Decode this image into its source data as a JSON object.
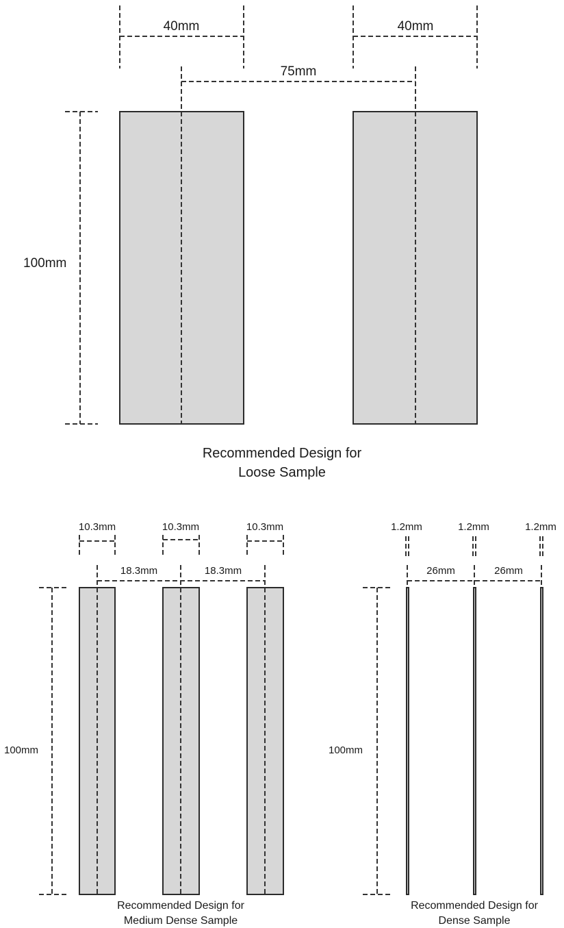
{
  "loose": {
    "width_left": "40mm",
    "width_right": "40mm",
    "spacing": "75mm",
    "height": "100mm",
    "caption_line1": "Recommended Design for",
    "caption_line2": "Loose Sample"
  },
  "medium": {
    "width_1": "10.3mm",
    "width_2": "10.3mm",
    "width_3": "10.3mm",
    "spacing_1": "18.3mm",
    "spacing_2": "18.3mm",
    "height": "100mm",
    "caption_line1": "Recommended Design for",
    "caption_line2": "Medium Dense Sample"
  },
  "dense": {
    "width_1": "1.2mm",
    "width_2": "1.2mm",
    "width_3": "1.2mm",
    "spacing_1": "26mm",
    "spacing_2": "26mm",
    "height": "100mm",
    "caption_line1": "Recommended Design for",
    "caption_line2": "Dense Sample"
  }
}
